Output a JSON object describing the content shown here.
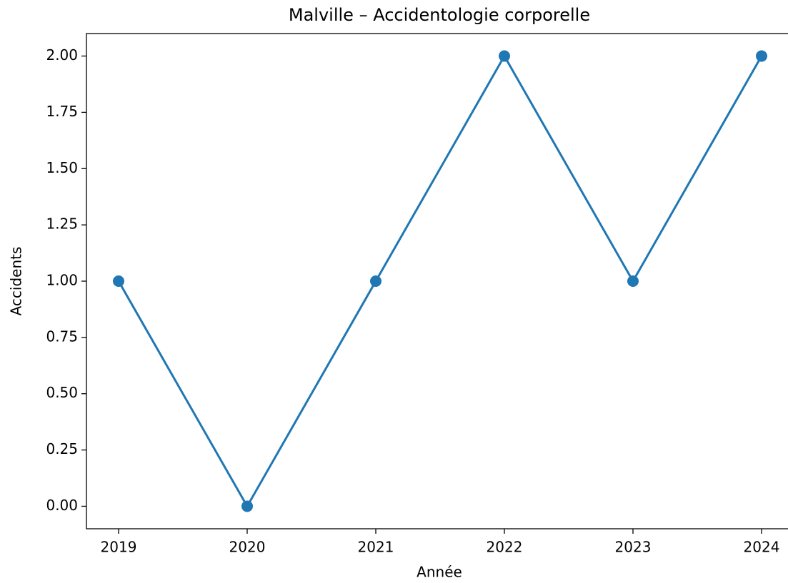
{
  "chart_data": {
    "type": "line",
    "title": "Malville – Accidentologie corporelle",
    "xlabel": "Année",
    "ylabel": "Accidents",
    "x": [
      2019,
      2020,
      2021,
      2022,
      2023,
      2024
    ],
    "series": [
      {
        "name": null,
        "color": "#1f77b4",
        "values": [
          1,
          0,
          1,
          2,
          1,
          2
        ]
      }
    ],
    "xlim": [
      2018.75,
      2024.25
    ],
    "xticks": [
      2019,
      2020,
      2021,
      2022,
      2023,
      2024
    ],
    "ylim": [
      -0.1,
      2.1
    ],
    "yticks": [
      {
        "value": 0,
        "label": "0.00"
      },
      {
        "value": 0.25,
        "label": "0.25"
      },
      {
        "value": 0.5,
        "label": "0.50"
      },
      {
        "value": 0.75,
        "label": "0.75"
      },
      {
        "value": 1,
        "label": "1.00"
      },
      {
        "value": 1.25,
        "label": "1.25"
      },
      {
        "value": 1.5,
        "label": "1.50"
      },
      {
        "value": 1.75,
        "label": "1.75"
      },
      {
        "value": 2,
        "label": "2.00"
      }
    ],
    "grid": false
  }
}
